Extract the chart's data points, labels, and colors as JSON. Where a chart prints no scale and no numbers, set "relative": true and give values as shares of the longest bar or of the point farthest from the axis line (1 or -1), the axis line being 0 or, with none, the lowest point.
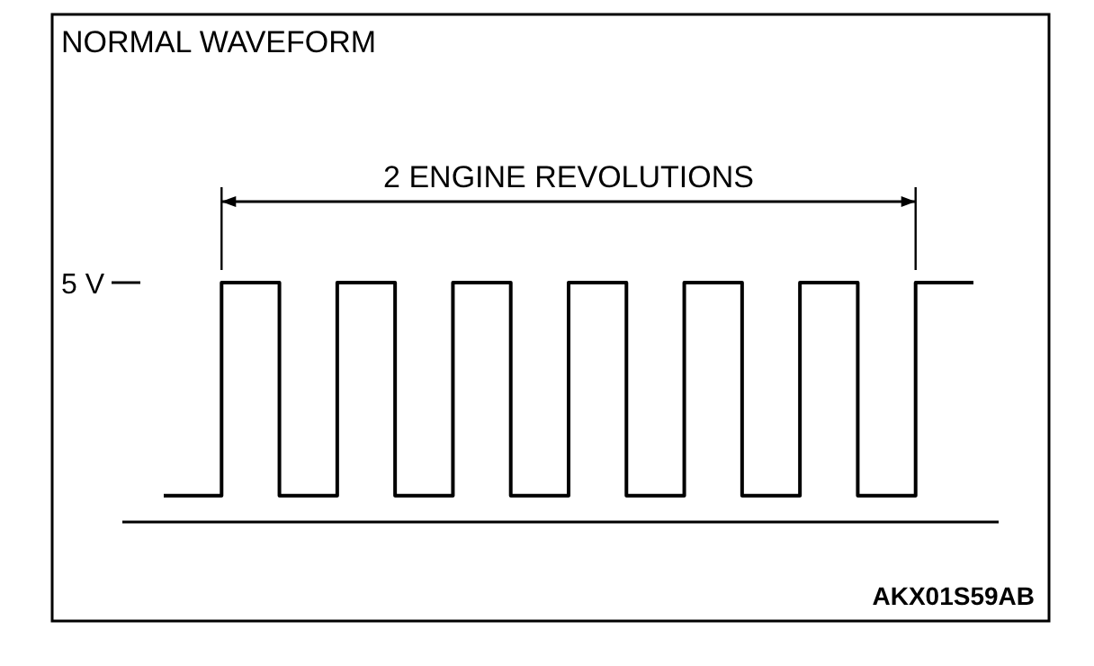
{
  "chart_data": {
    "type": "step",
    "title": "NORMAL WAVEFORM",
    "relative": true,
    "line_style": "solid",
    "categories": [
      null,
      null,
      null,
      null,
      null,
      null,
      null,
      null,
      null,
      null,
      null,
      null,
      null,
      null,
      null
    ],
    "values": [
      0.11,
      1,
      0.11,
      1,
      0.11,
      1,
      0.11,
      1,
      0.11,
      1,
      0.11,
      1,
      0.11,
      1,
      1
    ],
    "color": "#000000",
    "annotations": [
      "5 V",
      "2 ENGINE REVOLUTIONS",
      "AKX01S59AB"
    ]
  }
}
